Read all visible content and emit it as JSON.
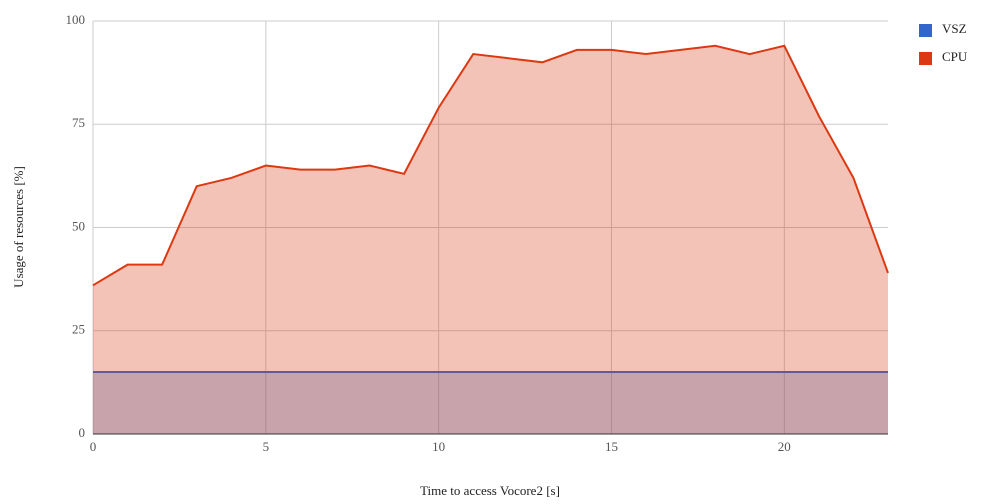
{
  "chart_data": {
    "type": "area",
    "x_label": "Time to access Vocore2 [s]",
    "y_label": "Usage of resources [%]",
    "x": [
      0,
      1,
      2,
      3,
      4,
      5,
      6,
      7,
      8,
      9,
      10,
      11,
      12,
      13,
      14,
      15,
      16,
      17,
      18,
      19,
      20,
      21,
      22,
      23
    ],
    "series": [
      {
        "name": "VSZ",
        "color": "#3366cc",
        "values": [
          15,
          15,
          15,
          15,
          15,
          15,
          15,
          15,
          15,
          15,
          15,
          15,
          15,
          15,
          15,
          15,
          15,
          15,
          15,
          15,
          15,
          15,
          15,
          15
        ]
      },
      {
        "name": "CPU",
        "color": "#dc3912",
        "values": [
          36,
          41,
          41,
          60,
          62,
          65,
          64,
          64,
          65,
          63,
          79,
          92,
          91,
          90,
          93,
          93,
          92,
          93,
          94,
          92,
          94,
          77,
          62,
          39
        ]
      }
    ],
    "xlim": [
      0,
      23
    ],
    "xticks": [
      0,
      5,
      10,
      15,
      20
    ],
    "ylim": [
      0,
      100
    ],
    "yticks": [
      0,
      25,
      50,
      75,
      100
    ],
    "grid": true,
    "legend": "right"
  }
}
